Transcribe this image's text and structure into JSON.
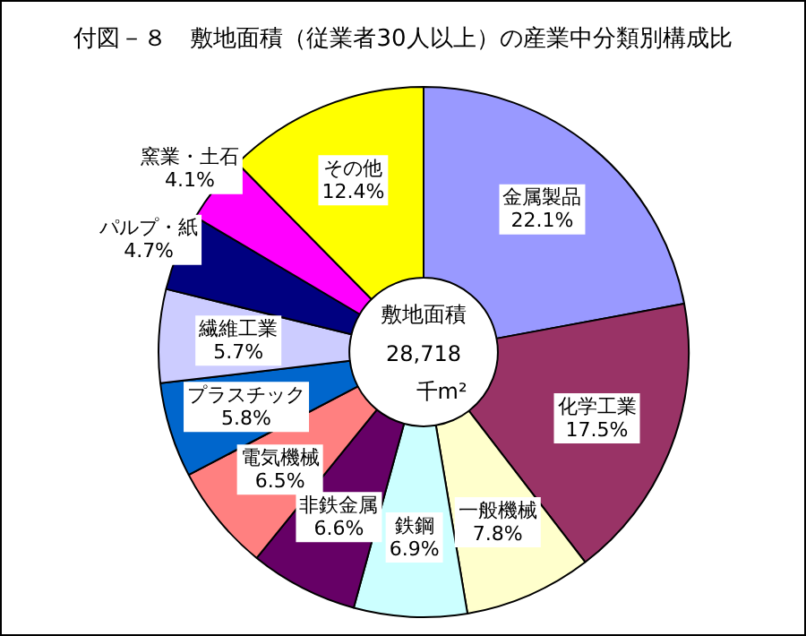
{
  "chart_data": {
    "type": "donut",
    "title": "付図－８　敷地面積（従業者30人以上）の産業中分類別構成比",
    "categories": [
      "金属製品",
      "化学工業",
      "一般機械",
      "鉄鋼",
      "非鉄金属",
      "電気機械",
      "プラスチック",
      "繊維工業",
      "パルプ・紙",
      "窯業・土石",
      "その他"
    ],
    "values": [
      22.1,
      17.5,
      7.8,
      6.9,
      6.6,
      6.5,
      5.8,
      5.7,
      4.7,
      4.1,
      12.4
    ],
    "value_labels": [
      "22.1%",
      "17.5%",
      "7.8%",
      "6.9%",
      "6.6%",
      "6.5%",
      "5.8%",
      "5.7%",
      "4.7%",
      "4.1%",
      "12.4%"
    ],
    "colors": [
      "#9999ff",
      "#993366",
      "#ffffcc",
      "#ccffff",
      "#660066",
      "#ff8080",
      "#0066cc",
      "#ccccff",
      "#000080",
      "#ff00ff",
      "#ffff00"
    ],
    "annotations": [
      "敷地面積",
      "28,718",
      "千m²"
    ],
    "legend": false
  }
}
